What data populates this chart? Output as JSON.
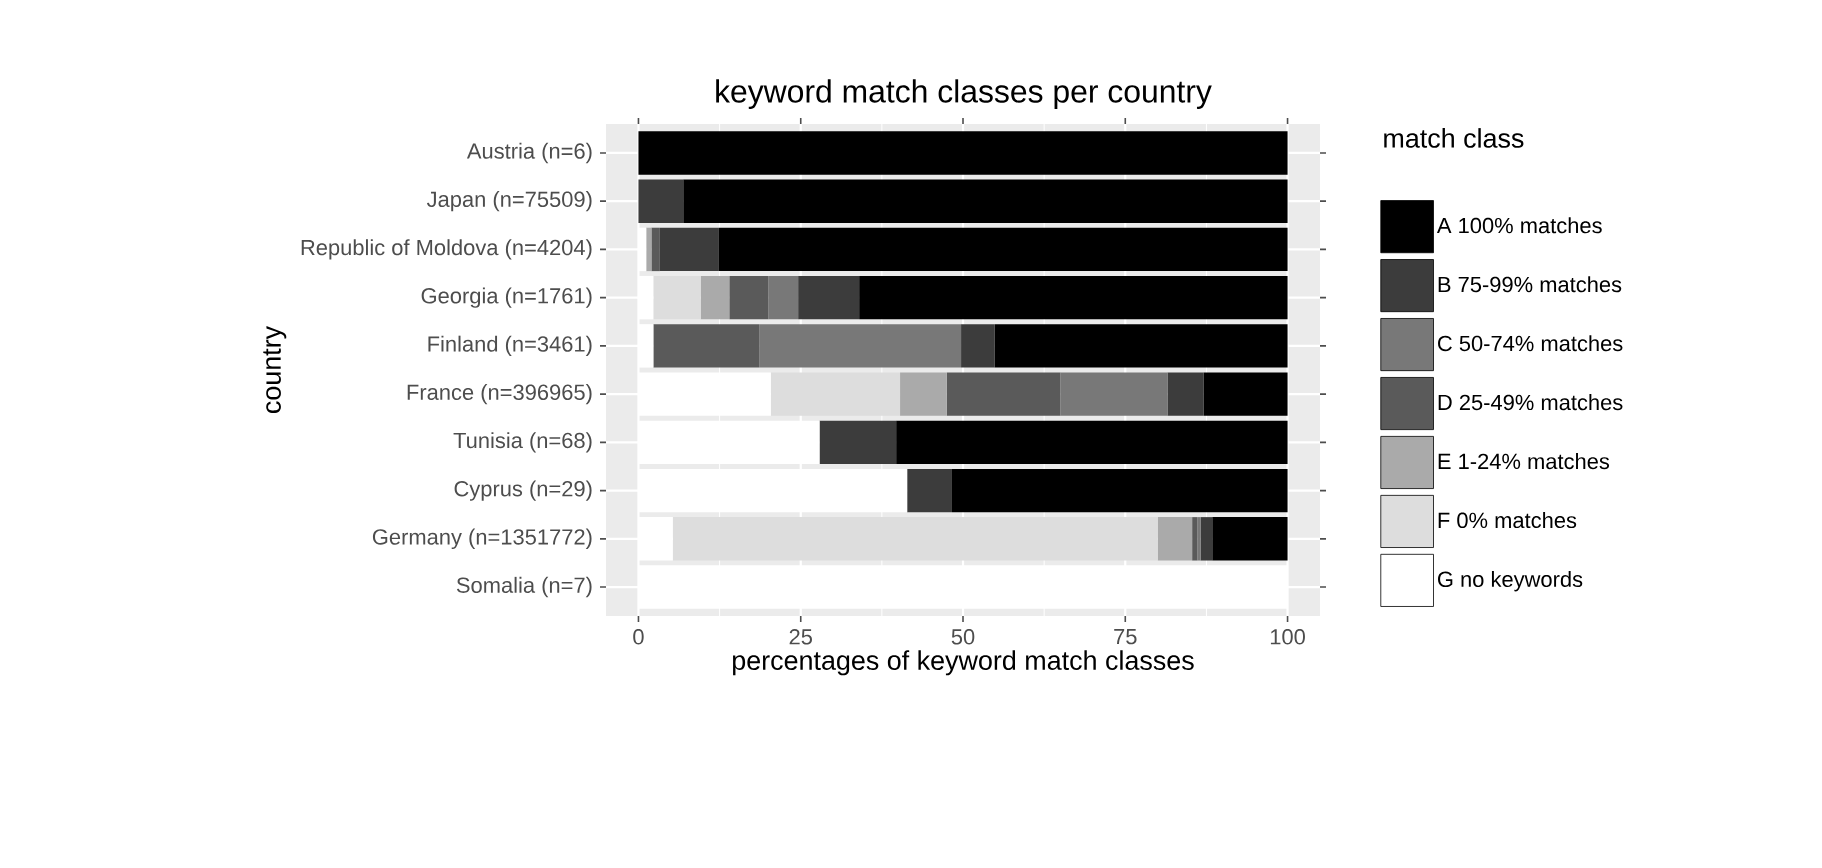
{
  "chart_data": {
    "type": "bar",
    "orientation": "horizontal",
    "stacked": true,
    "title": "keyword match classes per country",
    "xlabel": "percentages of keyword match classes",
    "ylabel": "country",
    "legend_title": "match class",
    "categories": [
      "Austria (n=6)",
      "Japan (n=75509)",
      "Republic of Moldova (n=4204)",
      "Georgia (n=1761)",
      "Finland (n=3461)",
      "France (n=396965)",
      "Tunisia (n=68)",
      "Cyprus (n=29)",
      "Germany (n=1351772)",
      "Somalia (n=7)"
    ],
    "series": [
      {
        "name": "G no keywords",
        "color": "#ffffff",
        "values": [
          0,
          0,
          1.2,
          2.3,
          2.3,
          20.4,
          27.9,
          41.4,
          5.3,
          100
        ]
      },
      {
        "name": "F 0% matches",
        "color": "#dddddd",
        "values": [
          0,
          0,
          0,
          7.3,
          0,
          19.9,
          0,
          0,
          74.7,
          0
        ]
      },
      {
        "name": "E 1-24% matches",
        "color": "#aaaaaa",
        "values": [
          0,
          0,
          0.8,
          4.4,
          0,
          7.2,
          0,
          0,
          5.3,
          0
        ]
      },
      {
        "name": "D 25-49% matches",
        "color": "#5a5a5a",
        "values": [
          0,
          0,
          1.3,
          6.0,
          16.3,
          17.5,
          0,
          0,
          0.8,
          0
        ]
      },
      {
        "name": "C 50-74% matches",
        "color": "#787878",
        "values": [
          0,
          0,
          0,
          4.6,
          31.1,
          16.5,
          0,
          0,
          0.5,
          0
        ]
      },
      {
        "name": "B 75-99% matches",
        "color": "#3c3c3c",
        "values": [
          0,
          6.9,
          9.1,
          9.4,
          5.2,
          5.6,
          11.8,
          6.9,
          1.8,
          0
        ]
      },
      {
        "name": "A 100% matches",
        "color": "#000000",
        "values": [
          100,
          93.1,
          87.6,
          66.0,
          45.1,
          12.9,
          60.3,
          51.7,
          11.6,
          0
        ]
      }
    ],
    "xlim": [
      -5,
      105
    ],
    "xticks": [
      0,
      25,
      50,
      75,
      100
    ],
    "grid": true,
    "legend": "right"
  }
}
